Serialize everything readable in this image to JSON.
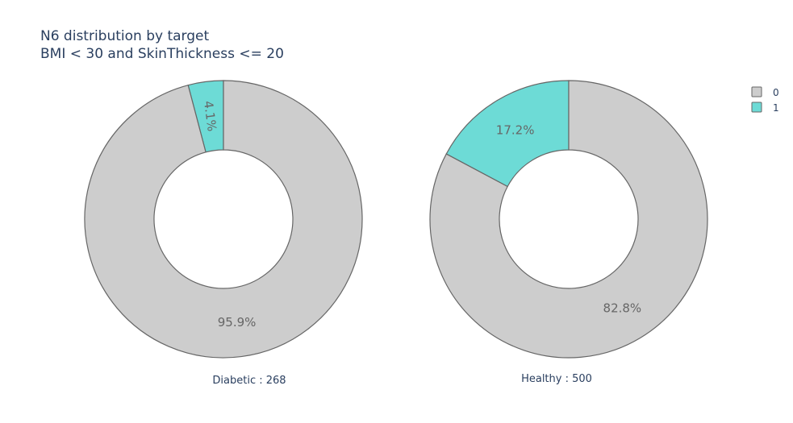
{
  "chart_data": {
    "type": "pie",
    "title": "N6 distribution by target",
    "subtitle": "BMI < 30 and SkinThickness <= 20",
    "legend": {
      "placement": "top-right",
      "entries": [
        {
          "name": "0",
          "color": "#cdcdcd"
        },
        {
          "name": "1",
          "color": "#6ddbd6"
        }
      ]
    },
    "colors": {
      "slice_0": "#cdcdcd",
      "slice_1": "#6ddbd6",
      "stroke": "#666666",
      "label_text": "#666666",
      "title_text": "#2a3f5f"
    },
    "pies": [
      {
        "label": "Diabetic : 268",
        "slices": [
          {
            "category": "0",
            "percent": 95.9,
            "label": "95.9%"
          },
          {
            "category": "1",
            "percent": 4.1,
            "label": "4.1%"
          }
        ]
      },
      {
        "label": "Healthy : 500",
        "slices": [
          {
            "category": "0",
            "percent": 82.8,
            "label": "82.8%"
          },
          {
            "category": "1",
            "percent": 17.2,
            "label": "17.2%"
          }
        ]
      }
    ]
  }
}
